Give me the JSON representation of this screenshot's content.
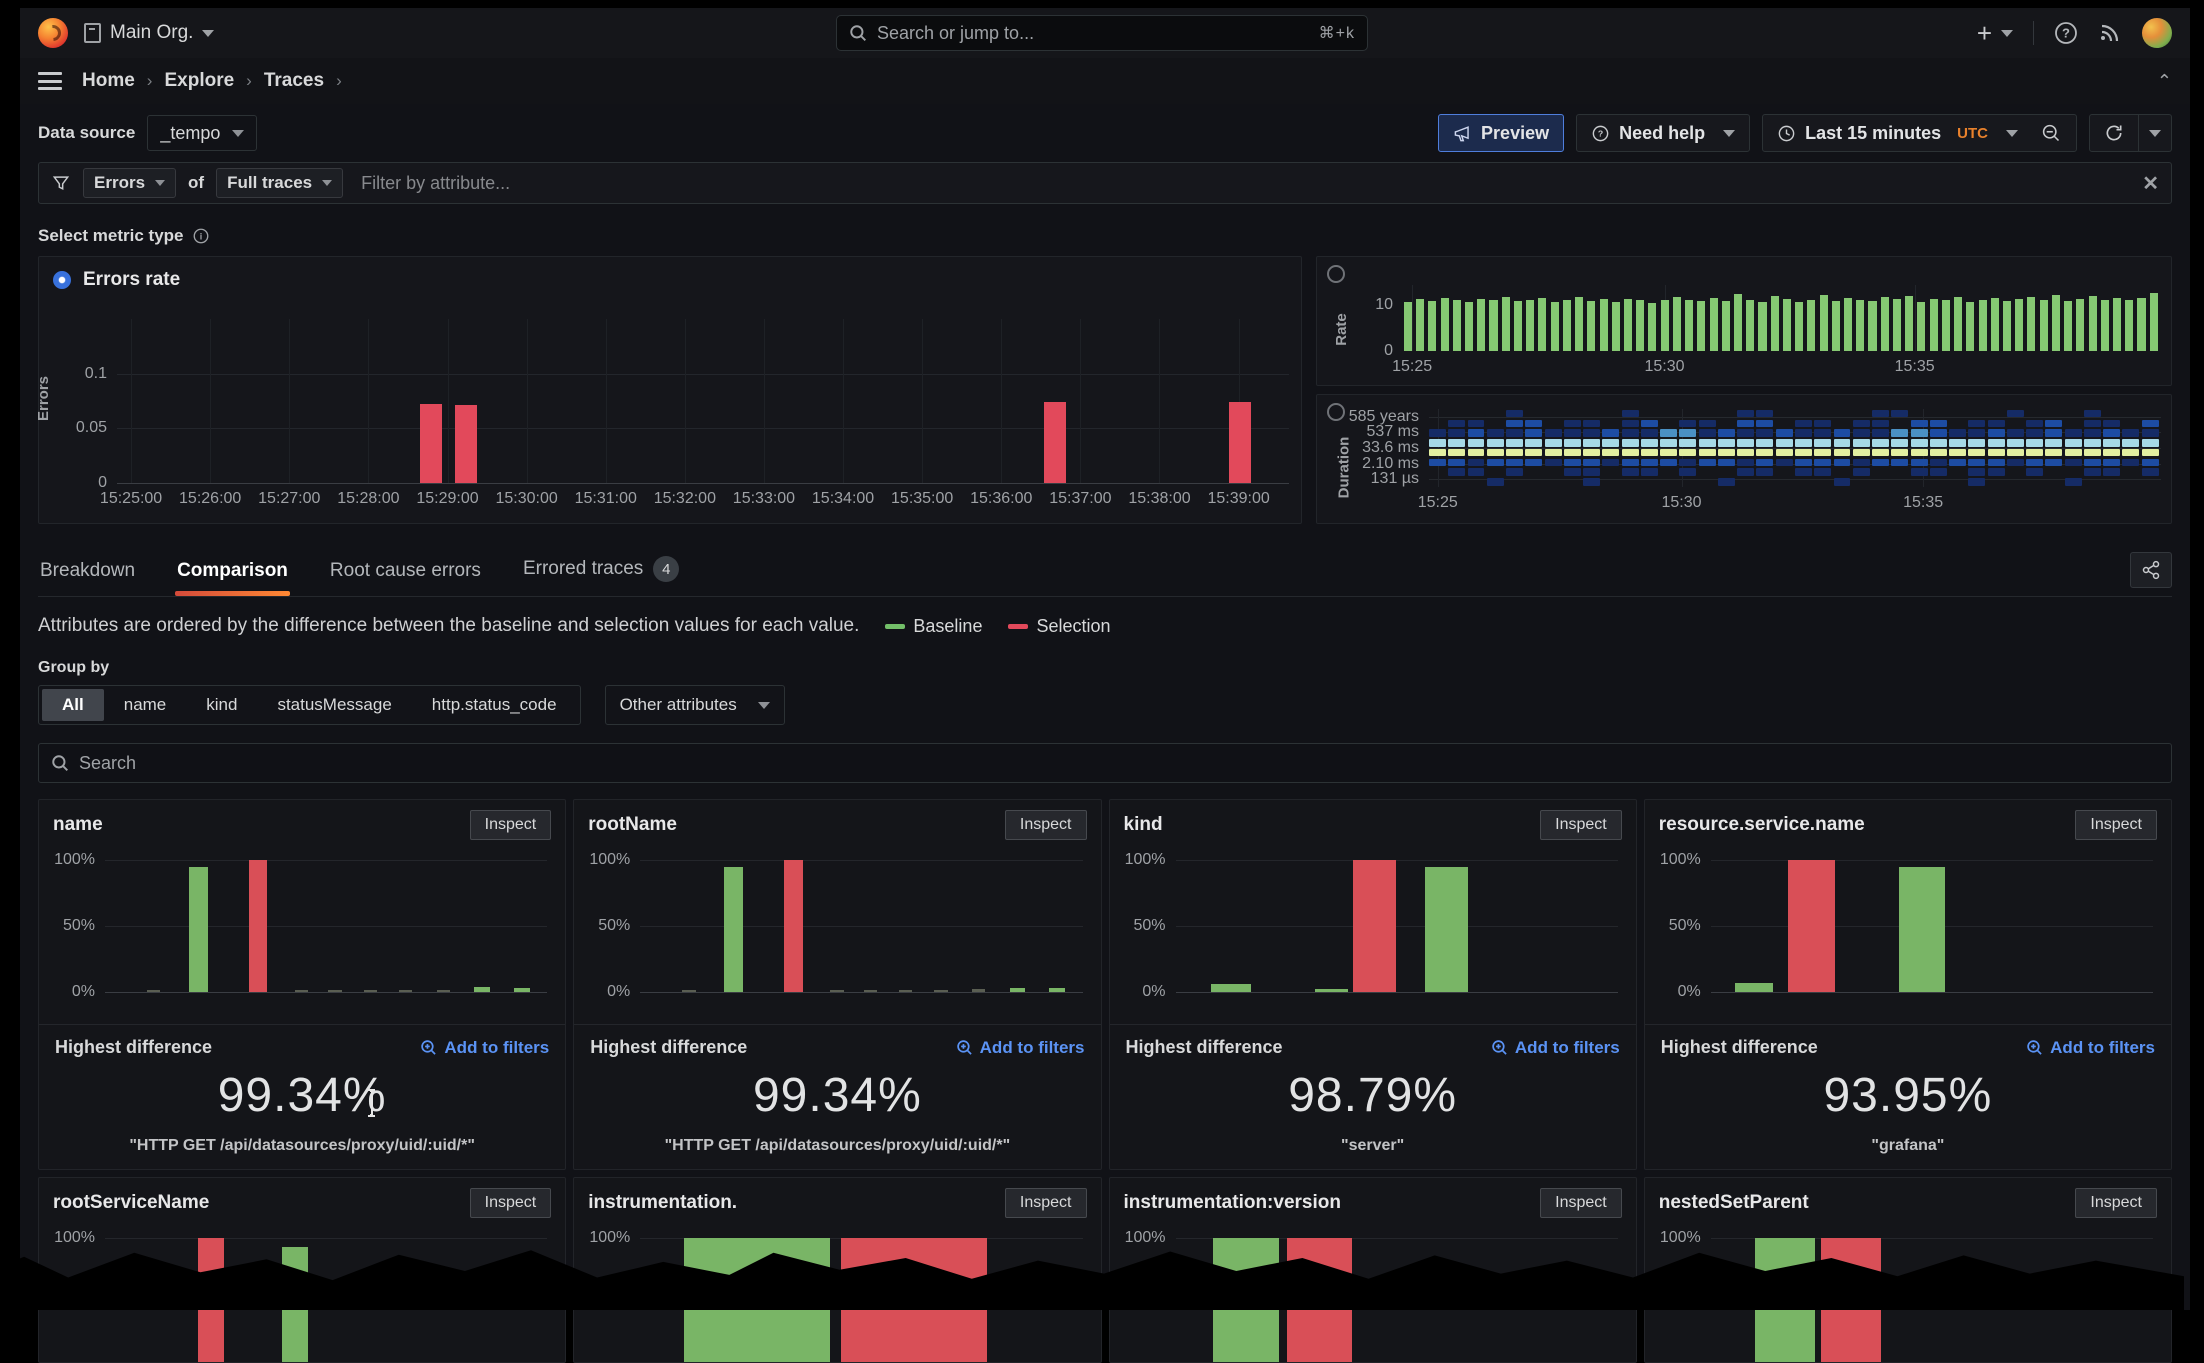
{
  "nav": {
    "org": "Main Org.",
    "search_placeholder": "Search or jump to...",
    "shortcut": "⌘+k"
  },
  "breadcrumb": {
    "items": [
      "Home",
      "Explore",
      "Traces"
    ]
  },
  "toolbar": {
    "datasource_label": "Data source",
    "datasource_value": "_tempo",
    "preview_label": "Preview",
    "need_help_label": "Need help",
    "time_range": "Last 15 minutes",
    "timezone": "UTC"
  },
  "filterbar": {
    "primary": "Errors",
    "of_label": "of",
    "secondary": "Full traces",
    "placeholder": "Filter by attribute..."
  },
  "metric_section_label": "Select metric type",
  "tabs": [
    {
      "label": "Breakdown",
      "active": false
    },
    {
      "label": "Comparison",
      "active": true
    },
    {
      "label": "Root cause errors",
      "active": false
    },
    {
      "label": "Errored traces",
      "active": false,
      "badge": "4"
    }
  ],
  "description": "Attributes are ordered by the difference between the baseline and selection values for each value.",
  "legend": {
    "baseline": "Baseline",
    "selection": "Selection",
    "baseline_color": "#73bf69",
    "selection_color": "#e2495b"
  },
  "group_by": {
    "label": "Group by",
    "options": [
      "All",
      "name",
      "kind",
      "statusMessage",
      "http.status_code"
    ],
    "active": "All",
    "other_label": "Other attributes"
  },
  "search_placeholder": "Search",
  "colors": {
    "green": "#79b566",
    "red": "#d94f57",
    "muted": "#5a5e52",
    "accent_blue": "#5b93f5",
    "orange": "#e8812c"
  },
  "chart_data": [
    {
      "id": "errors_rate",
      "type": "bar",
      "title": "Errors rate",
      "ylabel": "Errors",
      "ylim": [
        0,
        0.15
      ],
      "yticks": [
        {
          "label": "0.1",
          "v": 0.1
        },
        {
          "label": "0.05",
          "v": 0.05
        },
        {
          "label": "0",
          "v": 0
        }
      ],
      "xticks": [
        {
          "label": "15:25:00",
          "f": 0.012
        },
        {
          "label": "15:26:00",
          "f": 0.0795
        },
        {
          "label": "15:27:00",
          "f": 0.147
        },
        {
          "label": "15:28:00",
          "f": 0.2145
        },
        {
          "label": "15:29:00",
          "f": 0.282
        },
        {
          "label": "15:30:00",
          "f": 0.3495
        },
        {
          "label": "15:31:00",
          "f": 0.417
        },
        {
          "label": "15:32:00",
          "f": 0.4845
        },
        {
          "label": "15:33:00",
          "f": 0.552
        },
        {
          "label": "15:34:00",
          "f": 0.6195
        },
        {
          "label": "15:35:00",
          "f": 0.687
        },
        {
          "label": "15:36:00",
          "f": 0.7545
        },
        {
          "label": "15:37:00",
          "f": 0.822
        },
        {
          "label": "15:38:00",
          "f": 0.8895
        },
        {
          "label": "15:39:00",
          "f": 0.957
        }
      ],
      "bars": [
        {
          "f": 0.268,
          "v": 0.072
        },
        {
          "f": 0.298,
          "v": 0.071
        },
        {
          "f": 0.8,
          "v": 0.074
        },
        {
          "f": 0.958,
          "v": 0.074
        }
      ],
      "bar_color": "#e2495b",
      "grid": true
    },
    {
      "id": "rate",
      "type": "bar",
      "ylabel": "Rate",
      "ylim": [
        0,
        14.5
      ],
      "yticks": [
        {
          "label": "10",
          "v": 10
        },
        {
          "label": "0",
          "v": 0
        }
      ],
      "xticks": [
        {
          "label": "15:25",
          "f": 0.012
        },
        {
          "label": "15:30",
          "f": 0.345
        },
        {
          "label": "15:35",
          "f": 0.675
        }
      ],
      "values": [
        10.8,
        11.4,
        10.9,
        11.6,
        11.2,
        10.7,
        11.5,
        11.1,
        11.8,
        10.9,
        11.3,
        11.7,
        10.8,
        11.2,
        11.9,
        11.0,
        11.5,
        10.8,
        11.4,
        11.1,
        10.6,
        11.3,
        11.8,
        11.2,
        10.9,
        11.6,
        11.0,
        12.6,
        11.3,
        10.8,
        12.1,
        11.5,
        10.7,
        11.2,
        12.4,
        11.0,
        11.6,
        11.3,
        10.9,
        11.8,
        11.4,
        12.0,
        10.8,
        11.5,
        11.1,
        11.9,
        10.7,
        11.3,
        11.6,
        11.0,
        11.4,
        11.8,
        11.2,
        12.2,
        10.9,
        11.5,
        12.0,
        11.1,
        11.7,
        11.3,
        11.6,
        12.8
      ],
      "bar_color": "#86c873"
    },
    {
      "id": "duration",
      "type": "heatmap",
      "ylabel": "Duration",
      "yticks": [
        {
          "label": "585 years"
        },
        {
          "label": "537 ms"
        },
        {
          "label": "33.6 ms"
        },
        {
          "label": "2.10 ms"
        },
        {
          "label": "131 µs"
        }
      ],
      "xticks": [
        {
          "label": "15:25",
          "f": 0.012
        },
        {
          "label": "15:30",
          "f": 0.345
        },
        {
          "label": "15:35",
          "f": 0.675
        }
      ],
      "palette": {
        "1": "#152b66",
        "2": "#1d4ca3",
        "3": "#4a90c4",
        "4": "#a6d9e7",
        "5": "#e2efa0"
      },
      "rows": [
        "00001000001000001100000110000010001000",
        "01102201101201102201101102201101201102",
        "11211211121133121121121133211211211211",
        "44444444444444444444444444444444444444",
        "55555555555555555555555555555555555555",
        "22122212212221221212221222122212212212",
        "01101001101101001101101001101101001101",
        "00010000100000010000010000001000010000"
      ]
    }
  ],
  "panel_shared": {
    "inspect_label": "Inspect",
    "metric_label": "Highest difference",
    "add_link_label": "Add to filters",
    "yticks": [
      "100%",
      "50%",
      "0%"
    ]
  },
  "attribute_panels": [
    {
      "title": "name",
      "value": "99.34%",
      "caption": "\"HTTP GET /api/datasources/proxy/uid/:uid/*\"",
      "cursor": true,
      "bars": [
        [
          0.095,
          0.03,
          "m",
          1.5
        ],
        [
          0.19,
          0.042,
          "g",
          95
        ],
        [
          0.325,
          0.042,
          "r",
          100
        ],
        [
          0.43,
          0.03,
          "m",
          1.5
        ],
        [
          0.505,
          0.03,
          "m",
          1.5
        ],
        [
          0.585,
          0.03,
          "m",
          1.5
        ],
        [
          0.665,
          0.03,
          "m",
          1.5
        ],
        [
          0.75,
          0.03,
          "m",
          1.5
        ],
        [
          0.835,
          0.036,
          "g",
          4
        ],
        [
          0.925,
          0.036,
          "g",
          3
        ]
      ]
    },
    {
      "title": "rootName",
      "value": "99.34%",
      "caption": "\"HTTP GET /api/datasources/proxy/uid/:uid/*\"",
      "bars": [
        [
          0.095,
          0.03,
          "m",
          1.5
        ],
        [
          0.19,
          0.042,
          "g",
          95
        ],
        [
          0.325,
          0.042,
          "r",
          100
        ],
        [
          0.43,
          0.03,
          "m",
          1.5
        ],
        [
          0.505,
          0.03,
          "m",
          1.5
        ],
        [
          0.585,
          0.03,
          "m",
          1.5
        ],
        [
          0.665,
          0.03,
          "m",
          1.5
        ],
        [
          0.75,
          0.03,
          "m",
          2
        ],
        [
          0.835,
          0.036,
          "g",
          3
        ],
        [
          0.925,
          0.036,
          "g",
          3
        ]
      ]
    },
    {
      "title": "kind",
      "value": "98.79%",
      "caption": "\"server\"",
      "bars": [
        [
          0.08,
          0.09,
          "g",
          6
        ],
        [
          0.315,
          0.075,
          "g",
          2
        ],
        [
          0.402,
          0.096,
          "r",
          100
        ],
        [
          0.565,
          0.096,
          "g",
          95
        ]
      ]
    },
    {
      "title": "resource.service.name",
      "value": "93.95%",
      "caption": "\"grafana\"",
      "bars": [
        [
          0.055,
          0.085,
          "g",
          7
        ],
        [
          0.175,
          0.105,
          "r",
          100
        ],
        [
          0.425,
          0.105,
          "g",
          95
        ]
      ]
    },
    {
      "title": "rootServiceName",
      "cut": true,
      "bars": [
        [
          0.21,
          0.058,
          "r",
          100
        ],
        [
          0.4,
          0.058,
          "g",
          93
        ]
      ]
    },
    {
      "title": "instrumentation.",
      "cut": true,
      "bars": [
        [
          0.1,
          0.33,
          "g",
          100
        ],
        [
          0.455,
          0.33,
          "r",
          100
        ]
      ]
    },
    {
      "title": "instrumentation:version",
      "cut": true,
      "bars": [
        [
          0.085,
          0.148,
          "g",
          100
        ],
        [
          0.252,
          0.148,
          "r",
          100
        ]
      ]
    },
    {
      "title": "nestedSetParent",
      "cut": true,
      "bars": [
        [
          0.1,
          0.135,
          "g",
          100
        ],
        [
          0.25,
          0.135,
          "r",
          100
        ]
      ]
    }
  ]
}
